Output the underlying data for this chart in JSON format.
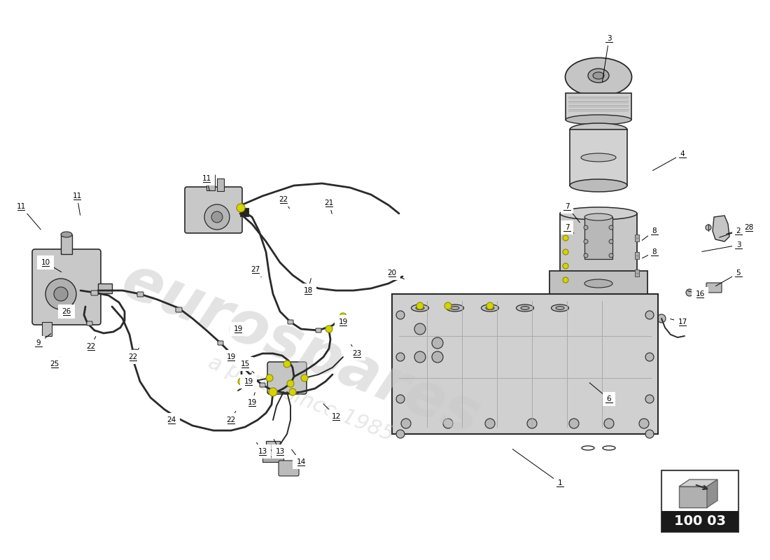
{
  "bg_color": "#ffffff",
  "diagram_code": "100 03",
  "watermark_line1": "eurospares",
  "watermark_line2": "a parts since 1985",
  "callouts": [
    [
      1,
      800,
      690,
      730,
      640
    ],
    [
      2,
      1055,
      330,
      1025,
      340
    ],
    [
      3,
      870,
      55,
      860,
      120
    ],
    [
      3,
      1055,
      350,
      1000,
      360
    ],
    [
      4,
      975,
      220,
      930,
      245
    ],
    [
      5,
      1055,
      390,
      1020,
      410
    ],
    [
      6,
      870,
      570,
      840,
      545
    ],
    [
      7,
      810,
      295,
      830,
      320
    ],
    [
      7,
      810,
      325,
      822,
      335
    ],
    [
      8,
      935,
      330,
      915,
      345
    ],
    [
      8,
      935,
      360,
      915,
      370
    ],
    [
      9,
      55,
      490,
      75,
      475
    ],
    [
      10,
      65,
      375,
      90,
      390
    ],
    [
      11,
      30,
      295,
      60,
      330
    ],
    [
      11,
      110,
      280,
      115,
      310
    ],
    [
      11,
      295,
      255,
      300,
      275
    ],
    [
      12,
      480,
      595,
      460,
      575
    ],
    [
      13,
      400,
      645,
      390,
      625
    ],
    [
      13,
      375,
      645,
      365,
      630
    ],
    [
      14,
      430,
      660,
      415,
      640
    ],
    [
      15,
      350,
      520,
      365,
      535
    ],
    [
      16,
      1000,
      420,
      980,
      415
    ],
    [
      17,
      975,
      460,
      955,
      455
    ],
    [
      18,
      440,
      415,
      445,
      395
    ],
    [
      19,
      340,
      470,
      350,
      480
    ],
    [
      19,
      355,
      545,
      360,
      530
    ],
    [
      19,
      360,
      575,
      365,
      558
    ],
    [
      19,
      330,
      510,
      338,
      520
    ],
    [
      19,
      490,
      460,
      500,
      450
    ],
    [
      20,
      560,
      390,
      580,
      400
    ],
    [
      21,
      470,
      290,
      475,
      308
    ],
    [
      22,
      405,
      285,
      415,
      300
    ],
    [
      22,
      190,
      510,
      200,
      495
    ],
    [
      22,
      130,
      495,
      138,
      478
    ],
    [
      22,
      330,
      600,
      338,
      585
    ],
    [
      23,
      510,
      505,
      500,
      490
    ],
    [
      24,
      245,
      600,
      252,
      588
    ],
    [
      25,
      78,
      520,
      88,
      508
    ],
    [
      26,
      95,
      445,
      106,
      432
    ],
    [
      27,
      365,
      385,
      375,
      398
    ],
    [
      28,
      1070,
      325,
      1035,
      335
    ]
  ]
}
